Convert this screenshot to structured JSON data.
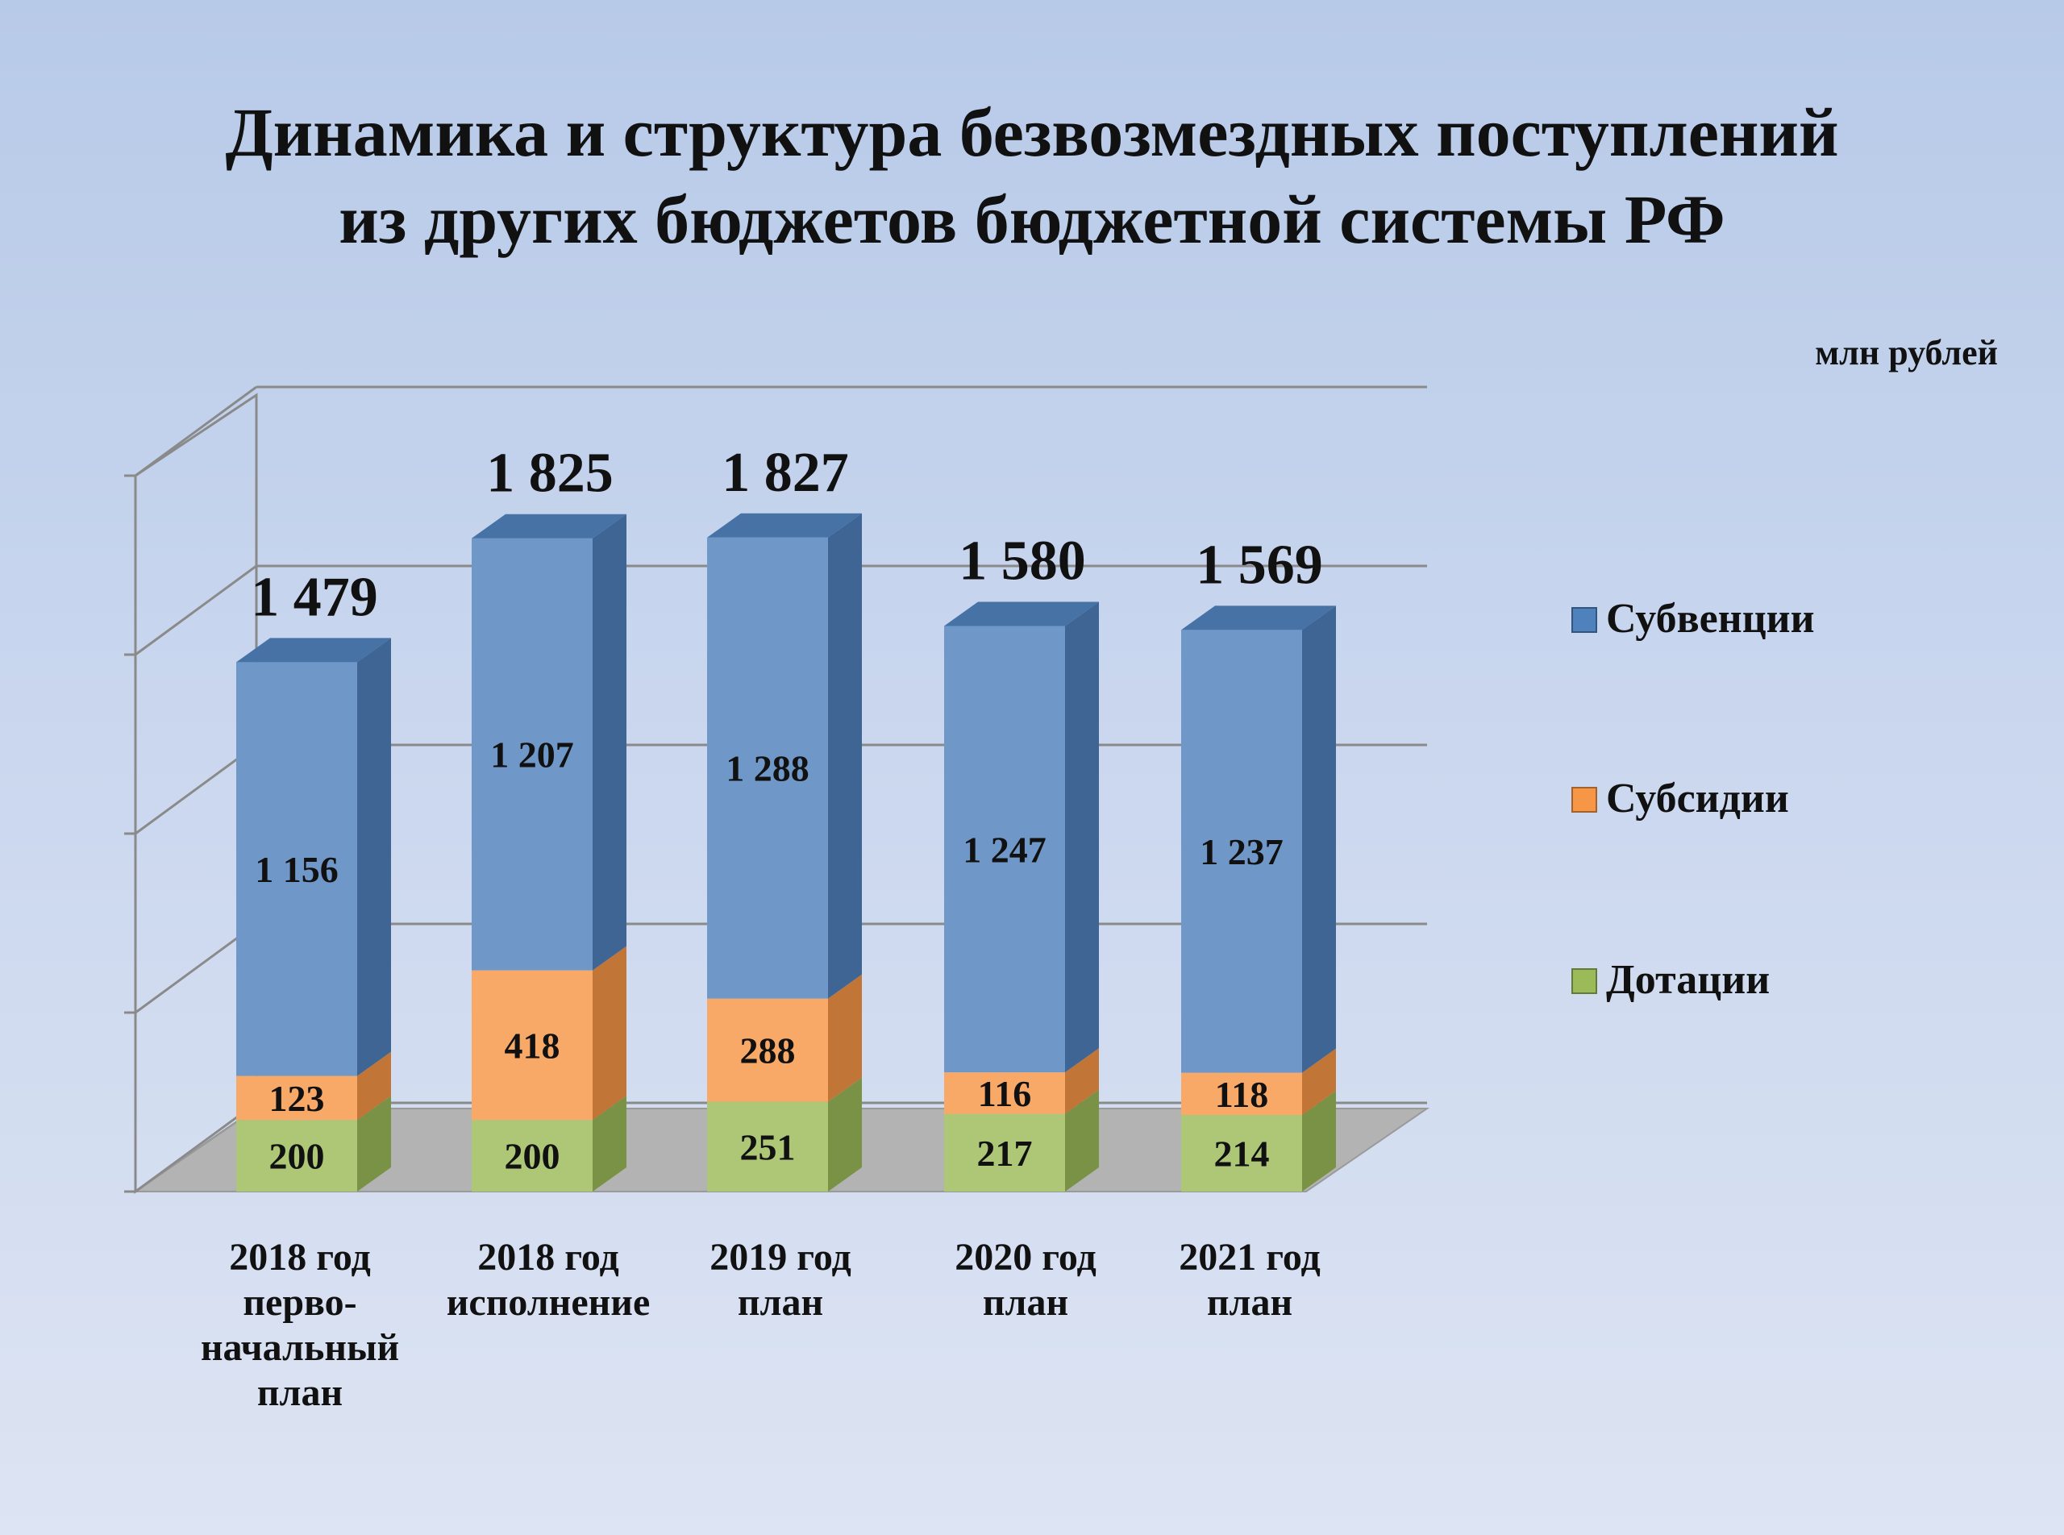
{
  "title_lines": [
    "Динамика и структура безвозмездных поступлений",
    "из других бюджетов бюджетной системы РФ"
  ],
  "units": "млн рублей",
  "chart_data": {
    "type": "bar",
    "stacked": true,
    "three_d": true,
    "categories": [
      [
        "2018 год",
        "перво-",
        "начальный",
        "план"
      ],
      [
        "2018 год",
        "исполнение"
      ],
      [
        "2019 год",
        "план"
      ],
      [
        "2020 год",
        "план"
      ],
      [
        "2021 год",
        "план"
      ]
    ],
    "series": [
      {
        "name": "Дотации",
        "values": [
          200,
          200,
          251,
          217,
          214
        ],
        "labels": [
          "200",
          "200",
          "251",
          "217",
          "214"
        ],
        "color": "#9bbb59"
      },
      {
        "name": "Субсидии",
        "values": [
          123,
          418,
          288,
          116,
          118
        ],
        "labels": [
          "123",
          "418",
          "288",
          "116",
          "118"
        ],
        "color": "#f79646"
      },
      {
        "name": "Субвенции",
        "values": [
          1156,
          1207,
          1288,
          1247,
          1237
        ],
        "labels": [
          "1 156",
          "1 207",
          "1 288",
          "1 247",
          "1 237"
        ],
        "color": "#4f81bd"
      }
    ],
    "totals": [
      "1 479",
      "1 825",
      "1 827",
      "1 580",
      "1 569"
    ],
    "total_values": [
      1479,
      1825,
      1827,
      1580,
      1569
    ],
    "legend_order": [
      "Субвенции",
      "Субсидии",
      "Дотации"
    ],
    "legend_position": "right",
    "ylim": [
      0,
      2000
    ],
    "grid": true
  }
}
